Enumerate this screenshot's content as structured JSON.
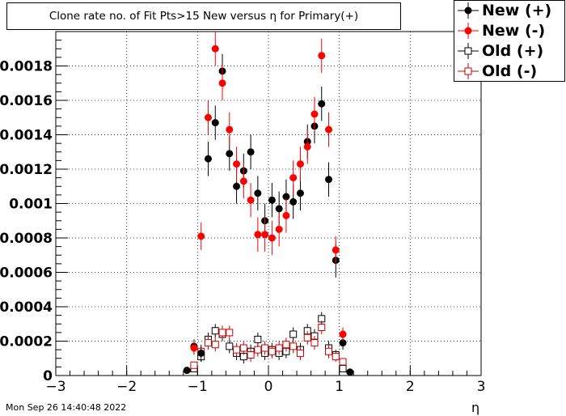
{
  "chart_data": {
    "type": "scatter",
    "title": "Clone rate no. of Fit Pts>15 New versus η for Primary(+)",
    "xlabel": "η",
    "ylabel": "",
    "xlim": [
      -3,
      3
    ],
    "ylim": [
      0,
      0.002
    ],
    "grid": true,
    "legend_placement": "top-right",
    "x_ticks": [
      "−3",
      "−2",
      "−1",
      "0",
      "1",
      "2",
      "3"
    ],
    "y_ticks": [
      "0",
      "0.0002",
      "0.0004",
      "0.0006",
      "0.0008",
      "0.001",
      "0.0012",
      "0.0014",
      "0.0016",
      "0.0018"
    ],
    "series": [
      {
        "name": "New (+)",
        "marker": "filled-circle",
        "color": "#000000",
        "x": [
          -1.15,
          -1.05,
          -0.95,
          -0.85,
          -0.75,
          -0.65,
          -0.55,
          -0.45,
          -0.35,
          -0.25,
          -0.15,
          -0.05,
          0.05,
          0.15,
          0.25,
          0.35,
          0.45,
          0.55,
          0.65,
          0.75,
          0.85,
          0.95,
          1.05,
          1.15
        ],
        "y": [
          3e-05,
          0.00017,
          0.00013,
          0.00126,
          0.00147,
          0.00177,
          0.00129,
          0.0011,
          0.00119,
          0.0013,
          0.00106,
          0.0009,
          0.00102,
          0.00097,
          0.00104,
          0.00101,
          0.00106,
          0.00136,
          0.00145,
          0.00158,
          0.00114,
          0.00067,
          0.00019,
          2e-05
        ],
        "err": [
          2e-05,
          4e-05,
          5e-05,
          0.0001,
          0.0001,
          0.0001,
          0.0001,
          0.0001,
          0.0001,
          0.0001,
          0.0001,
          0.0001,
          0.0001,
          0.0001,
          0.0001,
          0.0001,
          0.0001,
          0.0001,
          0.0001,
          0.0001,
          0.0001,
          0.0001,
          4e-05,
          2e-05
        ]
      },
      {
        "name": "New (-)",
        "marker": "filled-circle",
        "color": "#ff0000",
        "x": [
          -1.05,
          -0.95,
          -0.85,
          -0.75,
          -0.65,
          -0.55,
          -0.45,
          -0.35,
          -0.25,
          -0.15,
          -0.05,
          0.05,
          0.15,
          0.25,
          0.35,
          0.45,
          0.55,
          0.65,
          0.75,
          0.85,
          0.95,
          1.05
        ],
        "y": [
          0.00016,
          0.00081,
          0.0015,
          0.0019,
          0.0017,
          0.00143,
          0.00123,
          0.00113,
          0.00102,
          0.00082,
          0.00082,
          0.0008,
          0.00085,
          0.00093,
          0.00115,
          0.00123,
          0.00133,
          0.00152,
          0.00186,
          0.00143,
          0.00073,
          0.00024
        ],
        "err": [
          4e-05,
          8e-05,
          0.0001,
          0.0001,
          0.0001,
          0.0001,
          0.0001,
          0.0001,
          0.0001,
          0.0001,
          0.0001,
          0.0001,
          0.0001,
          0.0001,
          0.0001,
          0.0001,
          0.0001,
          0.0001,
          0.0001,
          0.0001,
          8e-05,
          4e-05
        ]
      },
      {
        "name": "Old (+)",
        "marker": "open-square",
        "color": "#000000",
        "x": [
          -1.05,
          -0.95,
          -0.85,
          -0.75,
          -0.65,
          -0.55,
          -0.45,
          -0.35,
          -0.25,
          -0.15,
          -0.05,
          0.05,
          0.15,
          0.25,
          0.35,
          0.45,
          0.55,
          0.65,
          0.75,
          0.85,
          0.95,
          1.05
        ],
        "y": [
          4e-05,
          0.00011,
          0.00021,
          0.00026,
          0.00024,
          0.00017,
          0.00013,
          0.00011,
          0.00014,
          0.00021,
          0.00013,
          0.00015,
          0.00013,
          0.00014,
          0.00024,
          0.00015,
          0.00026,
          0.00023,
          0.00033,
          0.00016,
          0.00012,
          4e-05
        ],
        "err": [
          2e-05,
          3e-05,
          4e-05,
          4e-05,
          4e-05,
          4e-05,
          4e-05,
          4e-05,
          4e-05,
          4e-05,
          4e-05,
          4e-05,
          4e-05,
          4e-05,
          4e-05,
          4e-05,
          4e-05,
          4e-05,
          4e-05,
          4e-05,
          3e-05,
          2e-05
        ]
      },
      {
        "name": "Old (-)",
        "marker": "open-square",
        "color": "#cc0000",
        "x": [
          -1.05,
          -0.95,
          -0.85,
          -0.75,
          -0.65,
          -0.55,
          -0.45,
          -0.35,
          -0.25,
          -0.15,
          -0.05,
          0.05,
          0.15,
          0.25,
          0.35,
          0.45,
          0.55,
          0.65,
          0.75,
          0.85,
          0.95,
          1.05
        ],
        "y": [
          6e-05,
          0.00014,
          0.00019,
          0.00018,
          0.00025,
          0.00025,
          0.00015,
          0.00016,
          0.00012,
          0.00015,
          0.00016,
          0.00014,
          0.00016,
          0.00018,
          0.00017,
          0.00013,
          0.00022,
          0.00019,
          0.00028,
          0.00014,
          0.00011,
          8e-05
        ],
        "err": [
          2e-05,
          3e-05,
          4e-05,
          4e-05,
          4e-05,
          4e-05,
          4e-05,
          4e-05,
          4e-05,
          4e-05,
          4e-05,
          4e-05,
          4e-05,
          4e-05,
          4e-05,
          4e-05,
          4e-05,
          4e-05,
          4e-05,
          4e-05,
          3e-05,
          2e-05
        ]
      }
    ]
  },
  "footer": {
    "timestamp": "Mon Sep 26 14:40:48 2022"
  }
}
